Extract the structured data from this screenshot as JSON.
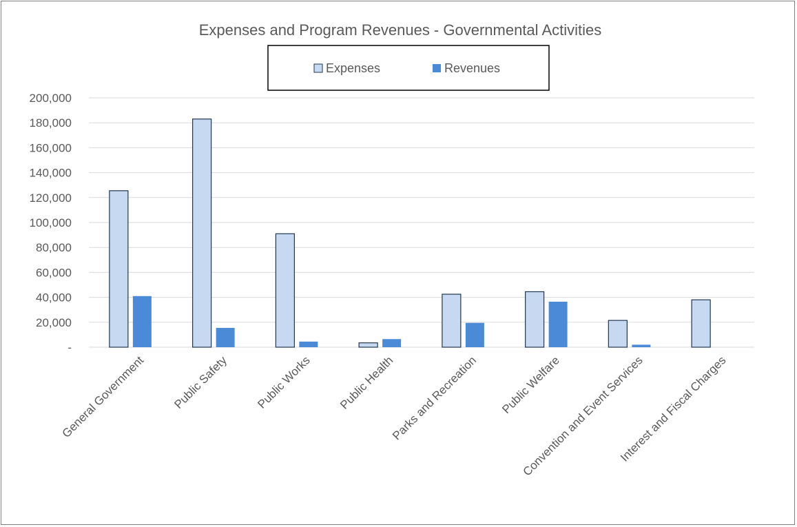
{
  "chart_data": {
    "type": "bar",
    "title": "Expenses and Program Revenues - Governmental Activities",
    "categories": [
      "General Government",
      "Public Safety",
      "Public Works",
      "Public Health",
      "Parks and Recreation",
      "Public Welfare",
      "Convention and Event Services",
      "Interest and Fiscal Charges"
    ],
    "series": [
      {
        "name": "Expenses",
        "color": "#c6d9f1",
        "values": [
          125500,
          183000,
          91000,
          3500,
          42500,
          44500,
          21500,
          38000
        ]
      },
      {
        "name": "Revenues",
        "color": "#4a8ad6",
        "values": [
          41000,
          15500,
          4500,
          6500,
          19500,
          36500,
          2000,
          0
        ]
      }
    ],
    "ylim": [
      0,
      200000
    ],
    "ytick_labels": [
      "-",
      "20,000",
      "40,000",
      "60,000",
      "80,000",
      "100,000",
      "120,000",
      "140,000",
      "160,000",
      "180,000",
      "200,000"
    ],
    "xlabel": "",
    "ylabel": "",
    "grid": true,
    "legend_position": "top-center"
  }
}
